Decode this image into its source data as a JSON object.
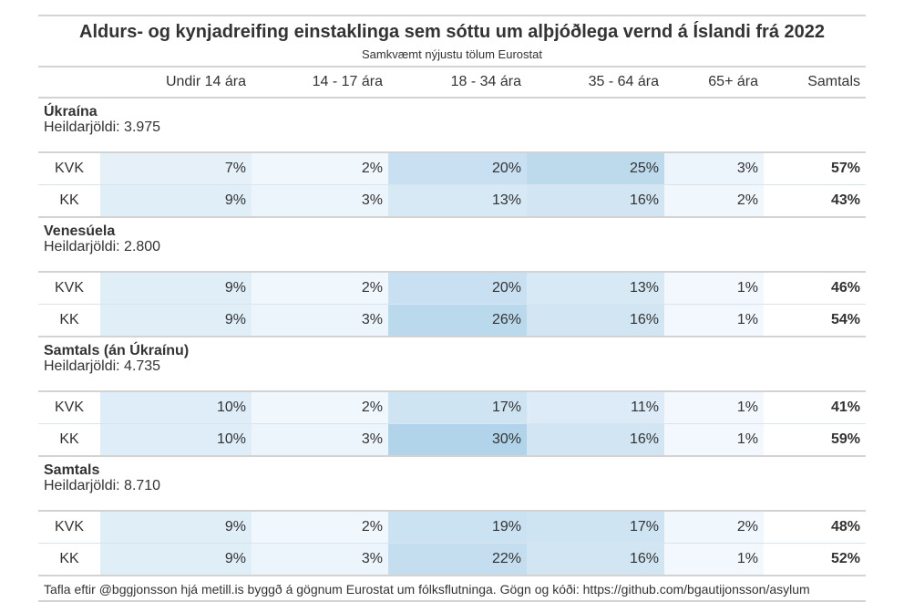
{
  "title": "Aldurs- og kynjadreifing einstaklinga sem sóttu um alþjóðlega vernd á Íslandi frá 2022",
  "subtitle": "Samkvæmt nýjustu tölum Eurostat",
  "footer": "Tafla eftir @bggjonsson hjá metill.is byggð á gögnum Eurostat um fólksflutninga. Gögn og kóði: https://github.com/bgautijonsson/asylum",
  "chart_data": {
    "type": "table",
    "columns": [
      "",
      "Undir 14 ára",
      "14 - 17 ára",
      "18 - 34 ára",
      "35 - 64 ára",
      "65+ ára",
      "Samtals"
    ],
    "groups": [
      {
        "name": "Úkraína",
        "total_label": "Heildarjöldi: 3.975",
        "rows": [
          {
            "label": "KVK",
            "values": [
              "7%",
              "2%",
              "20%",
              "25%",
              "3%"
            ],
            "total": "57%"
          },
          {
            "label": "KK",
            "values": [
              "9%",
              "3%",
              "13%",
              "16%",
              "2%"
            ],
            "total": "43%"
          }
        ]
      },
      {
        "name": "Venesúela",
        "total_label": "Heildarjöldi: 2.800",
        "rows": [
          {
            "label": "KVK",
            "values": [
              "9%",
              "2%",
              "20%",
              "13%",
              "1%"
            ],
            "total": "46%"
          },
          {
            "label": "KK",
            "values": [
              "9%",
              "3%",
              "26%",
              "16%",
              "1%"
            ],
            "total": "54%"
          }
        ]
      },
      {
        "name": "Samtals (án Úkraínu)",
        "total_label": "Heildarjöldi: 4.735",
        "rows": [
          {
            "label": "KVK",
            "values": [
              "10%",
              "2%",
              "17%",
              "11%",
              "1%"
            ],
            "total": "41%"
          },
          {
            "label": "KK",
            "values": [
              "10%",
              "3%",
              "30%",
              "16%",
              "1%"
            ],
            "total": "59%"
          }
        ]
      },
      {
        "name": "Samtals",
        "total_label": "Heildarjöldi: 8.710",
        "rows": [
          {
            "label": "KVK",
            "values": [
              "9%",
              "2%",
              "19%",
              "17%",
              "2%"
            ],
            "total": "48%"
          },
          {
            "label": "KK",
            "values": [
              "9%",
              "3%",
              "22%",
              "16%",
              "1%"
            ],
            "total": "52%"
          }
        ]
      }
    ]
  }
}
